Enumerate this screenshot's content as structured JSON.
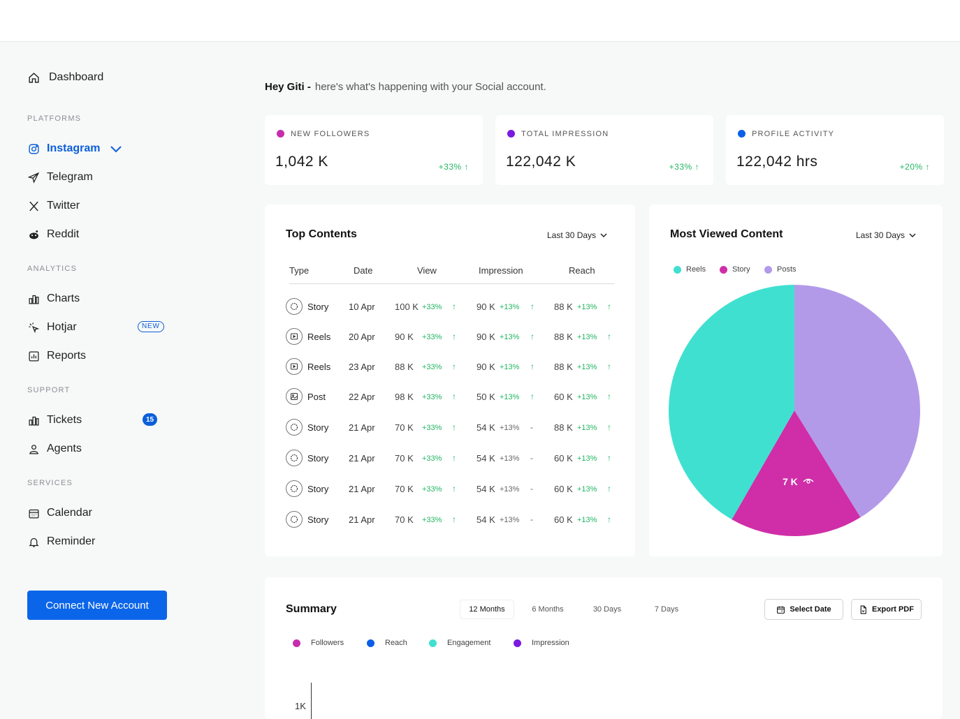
{
  "sidebar": {
    "dashboard": "Dashboard",
    "sections": {
      "platforms": "PLATFORMS",
      "analytics": "ANALYTICS",
      "support": "SUPPORT",
      "services": "SERVICES"
    },
    "platforms": [
      "Instagram",
      "Telegram",
      "Twitter",
      "Reddit"
    ],
    "analytics": [
      "Charts",
      "Hotjar",
      "Reports"
    ],
    "support": [
      "Tickets",
      "Agents"
    ],
    "services": [
      "Calendar",
      "Reminder"
    ],
    "hotjar_badge": "NEW",
    "tickets_count": "15",
    "connect_button": "Connect New Account",
    "accent": "#0b65e9"
  },
  "greeting": {
    "name": "Hey Giti -",
    "text": "here's what's happening with your Social account."
  },
  "stats": [
    {
      "label": "NEW FOLLOWERS",
      "value": "1,042 K",
      "delta": "+33% ↑",
      "color": "#c72cae"
    },
    {
      "label": "TOTAL IMPRESSION",
      "value": "122,042 K",
      "delta": "+33% ↑",
      "color": "#7a1ae0"
    },
    {
      "label": "PROFILE ACTIVITY",
      "value": "122,042 hrs",
      "delta": "+20% ↑",
      "color": "#0b5fe6"
    }
  ],
  "top_contents": {
    "title": "Top Contents",
    "range": "Last 30 Days",
    "columns": [
      "Type",
      "Date",
      "View",
      "Impression",
      "Reach"
    ],
    "rows": [
      {
        "type": "Story",
        "icon": "story-icon",
        "date": "10 Apr",
        "view": "100 K",
        "view_pct": "+33%",
        "imp": "90 K",
        "imp_pct": "+13%",
        "imp_up": true,
        "reach": "88 K",
        "reach_pct": "+13%"
      },
      {
        "type": "Reels",
        "icon": "reels-icon",
        "date": "20 Apr",
        "view": "90 K",
        "view_pct": "+33%",
        "imp": "90 K",
        "imp_pct": "+13%",
        "imp_up": true,
        "reach": "88 K",
        "reach_pct": "+13%"
      },
      {
        "type": "Reels",
        "icon": "reels-icon",
        "date": "23 Apr",
        "view": "88 K",
        "view_pct": "+33%",
        "imp": "90 K",
        "imp_pct": "+13%",
        "imp_up": true,
        "reach": "88 K",
        "reach_pct": "+13%"
      },
      {
        "type": "Post",
        "icon": "post-icon",
        "date": "22 Apr",
        "view": "98 K",
        "view_pct": "+33%",
        "imp": "50 K",
        "imp_pct": "+13%",
        "imp_up": true,
        "reach": "60 K",
        "reach_pct": "+13%"
      },
      {
        "type": "Story",
        "icon": "story-icon",
        "date": "21 Apr",
        "view": "70 K",
        "view_pct": "+33%",
        "imp": "54 K",
        "imp_pct": "+13%",
        "imp_up": false,
        "reach": "88 K",
        "reach_pct": "+13%"
      },
      {
        "type": "Story",
        "icon": "story-icon",
        "date": "21 Apr",
        "view": "70 K",
        "view_pct": "+33%",
        "imp": "54 K",
        "imp_pct": "+13%",
        "imp_up": false,
        "reach": "60 K",
        "reach_pct": "+13%"
      },
      {
        "type": "Story",
        "icon": "story-icon",
        "date": "21 Apr",
        "view": "70 K",
        "view_pct": "+33%",
        "imp": "54 K",
        "imp_pct": "+13%",
        "imp_up": false,
        "reach": "60 K",
        "reach_pct": "+13%"
      },
      {
        "type": "Story",
        "icon": "story-icon",
        "date": "21 Apr",
        "view": "70 K",
        "view_pct": "+33%",
        "imp": "54 K",
        "imp_pct": "+13%",
        "imp_up": false,
        "reach": "60 K",
        "reach_pct": "+13%"
      }
    ],
    "up_arrow": "↑",
    "flat_mark": "-"
  },
  "most_viewed": {
    "title": "Most Viewed Content",
    "range": "Last 30 Days",
    "legend": [
      {
        "name": "Reels",
        "color": "#40e0d0"
      },
      {
        "name": "Story",
        "color": "#cf2ea8"
      },
      {
        "name": "Posts",
        "color": "#b39ae9"
      }
    ],
    "center_label": "7 K"
  },
  "chart_data": {
    "type": "pie",
    "slices": [
      {
        "name": "Posts",
        "value": 41.2,
        "color": "#b39ae9"
      },
      {
        "name": "Story",
        "value": 17.1,
        "color": "#cf2ea8"
      },
      {
        "name": "Reels",
        "value": 41.7,
        "color": "#40e0d0"
      }
    ],
    "labels": [
      {
        "slice": "Story",
        "text": "7 K"
      }
    ]
  },
  "summary": {
    "title": "Summary",
    "tabs": [
      "12 Months",
      "6 Months",
      "30 Days",
      "7 Days"
    ],
    "active_tab": "12 Months",
    "select_date": "Select Date",
    "export_pdf": "Export PDF",
    "legend": [
      {
        "name": "Followers",
        "color": "#c72cae"
      },
      {
        "name": "Reach",
        "color": "#0b5fe6"
      },
      {
        "name": "Engagement",
        "color": "#40e0d0"
      },
      {
        "name": "Impression",
        "color": "#7a1ae0"
      }
    ],
    "y_tick": "1K"
  }
}
